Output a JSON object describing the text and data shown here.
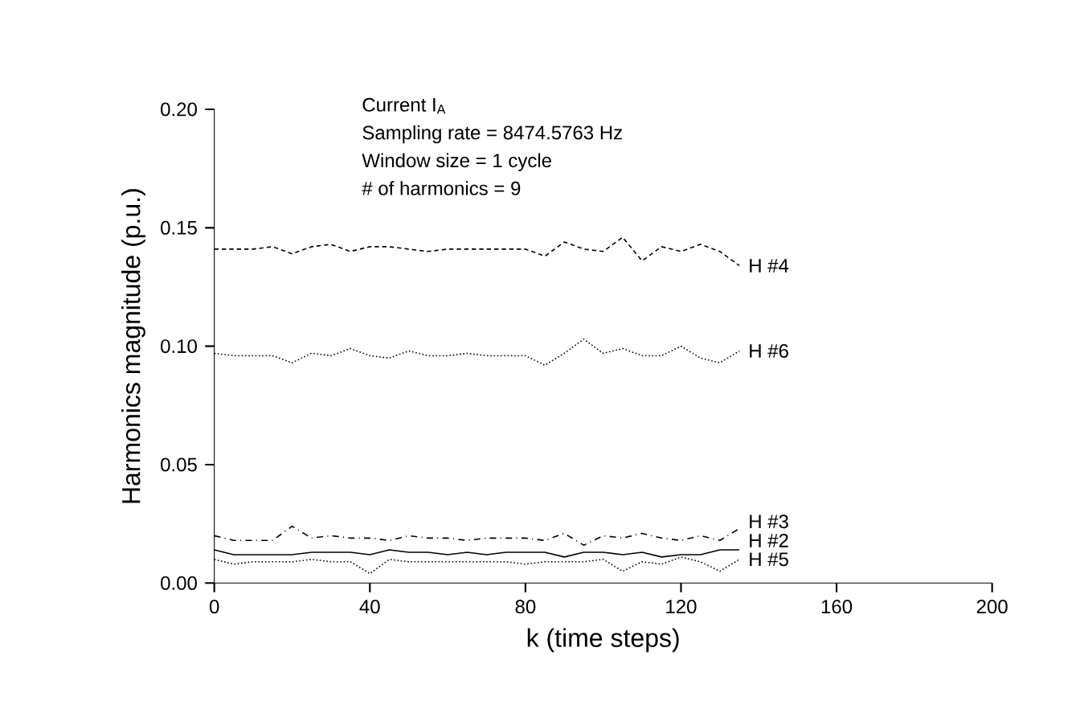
{
  "chart_data": {
    "type": "line",
    "xlabel": "k (time steps)",
    "ylabel": "Harmonics magnitude (p.u.)",
    "annotations": [
      "Current I$_{A}$",
      "Sampling rate = 8474.5763 Hz",
      "Window size = 1 cycle",
      "# of harmonics = 9"
    ],
    "x": [
      0,
      5,
      10,
      15,
      20,
      25,
      30,
      35,
      40,
      45,
      50,
      55,
      60,
      65,
      70,
      75,
      80,
      85,
      90,
      95,
      100,
      105,
      110,
      115,
      120,
      125,
      130,
      135
    ],
    "series": [
      {
        "name": "H #4",
        "color": "#000000",
        "line_style": "dashed",
        "values": [
          0.141,
          0.141,
          0.141,
          0.142,
          0.139,
          0.142,
          0.143,
          0.14,
          0.142,
          0.142,
          0.141,
          0.14,
          0.141,
          0.141,
          0.141,
          0.141,
          0.141,
          0.138,
          0.144,
          0.141,
          0.14,
          0.146,
          0.136,
          0.142,
          0.14,
          0.143,
          0.14,
          0.134
        ]
      },
      {
        "name": "H #6",
        "color": "#000000",
        "line_style": "dotted",
        "values": [
          0.097,
          0.096,
          0.096,
          0.096,
          0.093,
          0.097,
          0.096,
          0.099,
          0.096,
          0.095,
          0.098,
          0.096,
          0.096,
          0.097,
          0.096,
          0.096,
          0.096,
          0.092,
          0.097,
          0.103,
          0.097,
          0.099,
          0.096,
          0.096,
          0.1,
          0.095,
          0.093,
          0.098
        ]
      },
      {
        "name": "H #3",
        "color": "#000000",
        "line_style": "dashdot",
        "values": [
          0.02,
          0.018,
          0.018,
          0.018,
          0.024,
          0.019,
          0.02,
          0.019,
          0.019,
          0.018,
          0.02,
          0.019,
          0.019,
          0.018,
          0.019,
          0.019,
          0.019,
          0.018,
          0.021,
          0.016,
          0.02,
          0.019,
          0.021,
          0.019,
          0.018,
          0.02,
          0.018,
          0.023
        ]
      },
      {
        "name": "H #2",
        "color": "#000000",
        "line_style": "solid",
        "values": [
          0.014,
          0.012,
          0.012,
          0.012,
          0.012,
          0.013,
          0.013,
          0.013,
          0.012,
          0.014,
          0.013,
          0.013,
          0.012,
          0.013,
          0.012,
          0.013,
          0.013,
          0.013,
          0.011,
          0.013,
          0.013,
          0.012,
          0.013,
          0.011,
          0.012,
          0.012,
          0.014,
          0.014
        ]
      },
      {
        "name": "H #5",
        "color": "#000000",
        "line_style": "dotted",
        "values": [
          0.01,
          0.008,
          0.009,
          0.009,
          0.009,
          0.01,
          0.009,
          0.009,
          0.004,
          0.01,
          0.009,
          0.009,
          0.009,
          0.009,
          0.009,
          0.009,
          0.008,
          0.009,
          0.009,
          0.009,
          0.01,
          0.005,
          0.009,
          0.008,
          0.011,
          0.009,
          0.005,
          0.01
        ]
      }
    ],
    "xlim": [
      0,
      200
    ],
    "xticks": [
      0,
      40,
      80,
      120,
      160,
      200
    ],
    "ylim": [
      0,
      0.2
    ],
    "yticks": [
      {
        "value": 0,
        "label": "0.00"
      },
      {
        "value": 0.05,
        "label": "0.05"
      },
      {
        "value": 0.1,
        "label": "0.10"
      },
      {
        "value": 0.15,
        "label": "0.15"
      },
      {
        "value": 0.2,
        "label": "0.20"
      }
    ],
    "grid": false,
    "legend": false,
    "marker": "none"
  }
}
